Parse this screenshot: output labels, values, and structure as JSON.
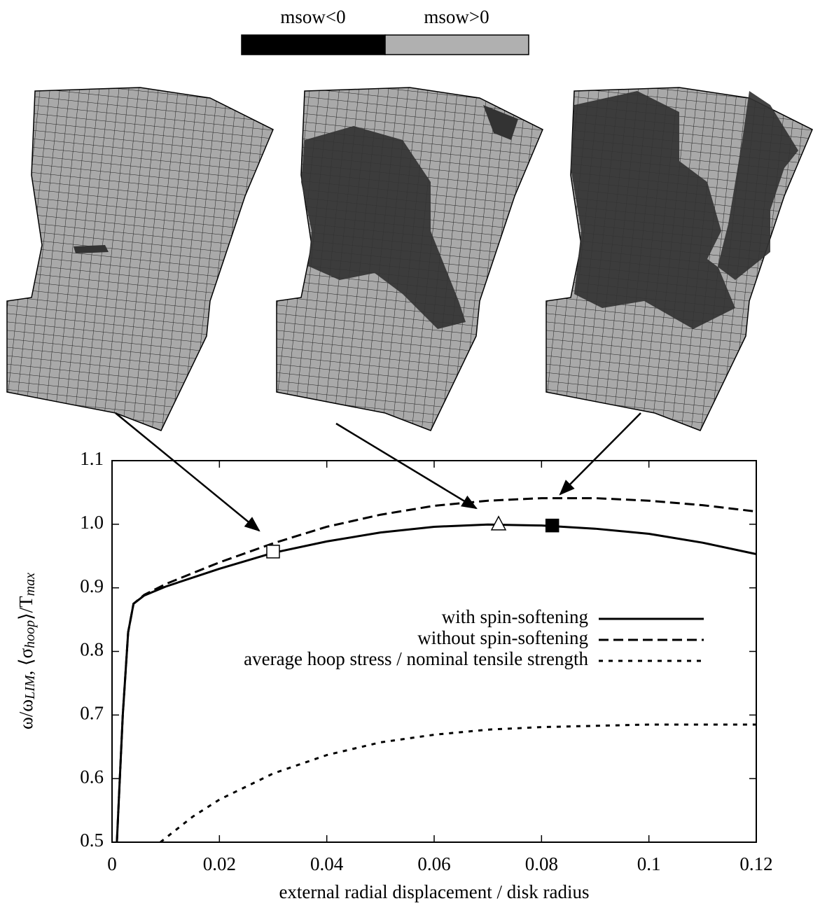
{
  "chart_data": {
    "type": "line",
    "xlabel": "external radial displacement / disk radius",
    "ylabel": [
      "ω/ω",
      "LIM",
      ", ⟨σ",
      "hoop",
      "⟩/T",
      "max"
    ],
    "xlim": [
      0,
      0.12
    ],
    "ylim": [
      0.5,
      1.1
    ],
    "xticks": [
      0,
      0.02,
      0.04,
      0.06,
      0.08,
      0.1,
      0.12
    ],
    "yticks": [
      0.5,
      0.6,
      0.7,
      0.8,
      0.9,
      {
        "value": 1,
        "label": "1.0"
      },
      1.1
    ],
    "legend": "right",
    "colorbar": [
      {
        "label": "msow<0",
        "color": "#000000"
      },
      {
        "label": "msow>0",
        "color": "#b0b0b0"
      }
    ],
    "series": [
      {
        "name": "with spin-softening",
        "color": "#000000",
        "dash": "solid",
        "x": [
          0.0009,
          0.002,
          0.003,
          0.004,
          0.006,
          0.01,
          0.02,
          0.03,
          0.04,
          0.05,
          0.06,
          0.07,
          0.08,
          0.09,
          0.1,
          0.11,
          0.12
        ],
        "values": [
          0.5,
          0.7,
          0.83,
          0.875,
          0.888,
          0.902,
          0.93,
          0.955,
          0.973,
          0.987,
          0.996,
          0.9995,
          0.998,
          0.993,
          0.985,
          0.971,
          0.953
        ]
      },
      {
        "name": "without spin-softening",
        "color": "#000000",
        "dash": "dashed",
        "x": [
          0.0009,
          0.002,
          0.003,
          0.004,
          0.006,
          0.01,
          0.02,
          0.03,
          0.04,
          0.05,
          0.06,
          0.07,
          0.08,
          0.09,
          0.1,
          0.11,
          0.12
        ],
        "values": [
          0.5,
          0.7,
          0.83,
          0.875,
          0.889,
          0.906,
          0.94,
          0.97,
          0.996,
          1.015,
          1.029,
          1.037,
          1.041,
          1.041,
          1.037,
          1.03,
          1.02
        ]
      },
      {
        "name": "average hoop stress / nominal tensile strength",
        "color": "#000000",
        "dash": "dotted",
        "x": [
          0.009,
          0.015,
          0.02,
          0.03,
          0.04,
          0.05,
          0.06,
          0.07,
          0.08,
          0.09,
          0.1,
          0.11,
          0.12
        ],
        "values": [
          0.5,
          0.54,
          0.567,
          0.608,
          0.637,
          0.657,
          0.669,
          0.677,
          0.681,
          0.683,
          0.685,
          0.685,
          0.685
        ]
      }
    ],
    "markers": {
      "x": [
        0.03,
        0.072,
        0.082
      ],
      "values": [
        0.957,
        1.0,
        0.998
      ],
      "shapes": [
        "open-square",
        "open-triangle",
        "filled-square"
      ]
    }
  }
}
